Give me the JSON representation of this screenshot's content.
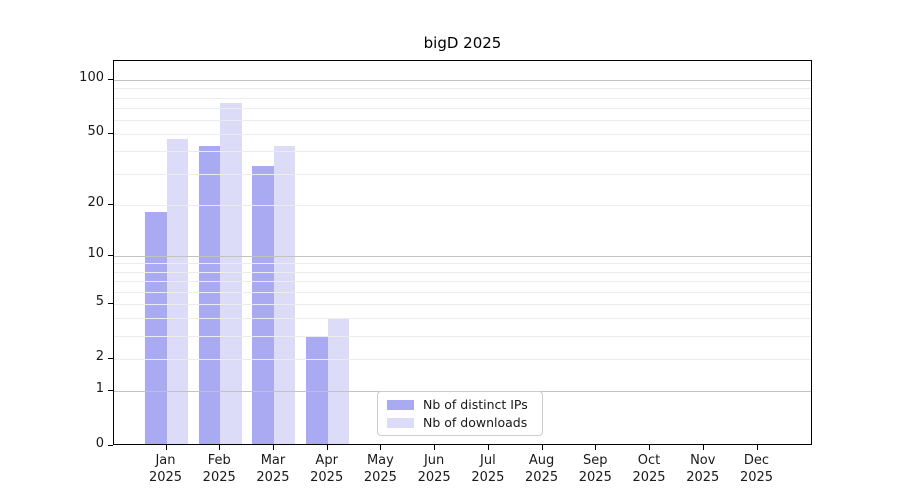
{
  "chart_data": {
    "type": "bar",
    "title": "bigD 2025",
    "categories": [
      "Jan 2025",
      "Feb 2025",
      "Mar 2025",
      "Apr 2025",
      "May 2025",
      "Jun 2025",
      "Jul 2025",
      "Aug 2025",
      "Sep 2025",
      "Oct 2025",
      "Nov 2025",
      "Dec 2025"
    ],
    "series": [
      {
        "name": "Nb of distinct IPs",
        "color": "#aaaaf2",
        "values": [
          18,
          43,
          33,
          3,
          0,
          0,
          0,
          0,
          0,
          0,
          0,
          0
        ]
      },
      {
        "name": "Nb of downloads",
        "color": "#dcdcf8",
        "values": [
          47,
          75,
          43,
          4,
          0,
          0,
          0,
          0,
          0,
          0,
          0,
          0
        ]
      }
    ],
    "xlabel": "",
    "ylabel": "",
    "yscale": "log1p",
    "ylim": [
      0,
      127
    ],
    "yticks": [
      0,
      1,
      2,
      5,
      10,
      20,
      50,
      100
    ],
    "major_gridlines": [
      1,
      10,
      100
    ],
    "minor_gridlines": [
      2,
      3,
      4,
      5,
      6,
      7,
      8,
      9,
      20,
      30,
      40,
      50,
      60,
      70,
      80,
      90
    ],
    "grid": "on, drawn above bars",
    "legend_position": "lower center, inside axes",
    "colors": {
      "axis": "#000000",
      "text": "#1a1a1a",
      "major_grid": "#c2c2c2",
      "minor_grid": "#ececec",
      "background": "#ffffff",
      "legend_border": "#cccccc"
    }
  }
}
